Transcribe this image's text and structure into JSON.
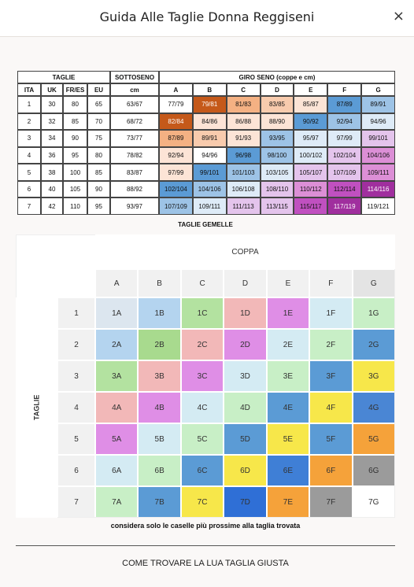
{
  "header": {
    "title": "Guida Alle Taglie Donna Reggiseni",
    "close": "×"
  },
  "size_table": {
    "group_headers": [
      "TAGLIE",
      "SOTTOSENO",
      "GIRO SENO (coppe e cm)"
    ],
    "columns": [
      "ITA",
      "UK",
      "FR/ES",
      "EU",
      "cm",
      "A",
      "B",
      "C",
      "D",
      "E",
      "F",
      "G"
    ],
    "rows": [
      [
        1,
        30,
        80,
        65,
        "63/67",
        "77/79",
        "79/81",
        "81/83",
        "83/85",
        "85/87",
        "87/89",
        "89/91"
      ],
      [
        2,
        32,
        85,
        70,
        "68/72",
        "82/84",
        "84/86",
        "86/88",
        "88/90",
        "90/92",
        "92/94",
        "94/96"
      ],
      [
        3,
        34,
        90,
        75,
        "73/77",
        "87/89",
        "89/91",
        "91/93",
        "93/95",
        "95/97",
        "97/99",
        "99/101"
      ],
      [
        4,
        36,
        95,
        80,
        "78/82",
        "92/94",
        "94/96",
        "96/98",
        "98/100",
        "100/102",
        "102/104",
        "104/106"
      ],
      [
        5,
        38,
        100,
        85,
        "83/87",
        "97/99",
        "99/101",
        "101/103",
        "103/105",
        "105/107",
        "107/109",
        "109/111"
      ],
      [
        6,
        40,
        105,
        90,
        "88/92",
        "102/104",
        "104/106",
        "106/108",
        "108/110",
        "110/112",
        "112/114",
        "114/116"
      ],
      [
        7,
        42,
        110,
        95,
        "93/97",
        "107/109",
        "109/111",
        "111/113",
        "113/115",
        "115/117",
        "117/119",
        "119/121"
      ]
    ]
  },
  "twin_sizes": {
    "title": "TAGLIE GEMELLE",
    "column_group": "COPPA",
    "row_group": "TAGLIE",
    "columns": [
      "A",
      "B",
      "C",
      "D",
      "E",
      "F",
      "G"
    ],
    "row_labels": [
      1,
      2,
      3,
      4,
      5,
      6,
      7
    ],
    "cells": [
      [
        "1A",
        "1B",
        "1C",
        "1D",
        "1E",
        "1F",
        "1G"
      ],
      [
        "2A",
        "2B",
        "2C",
        "2D",
        "2E",
        "2F",
        "2G"
      ],
      [
        "3A",
        "3B",
        "3C",
        "3D",
        "3E",
        "3F",
        "3G"
      ],
      [
        "4A",
        "4B",
        "4C",
        "4D",
        "4E",
        "4F",
        "4G"
      ],
      [
        "5A",
        "5B",
        "5C",
        "5D",
        "5E",
        "5F",
        "5G"
      ],
      [
        "6A",
        "6B",
        "6C",
        "6D",
        "6E",
        "6F",
        "6G"
      ],
      [
        "7A",
        "7B",
        "7C",
        "7D",
        "7E",
        "7F",
        "7G"
      ]
    ]
  },
  "note": "considera solo le caselle più prossime alla taglia trovata",
  "footer_link": "COME TROVARE LA LUA TAGLIA GIUSTA"
}
